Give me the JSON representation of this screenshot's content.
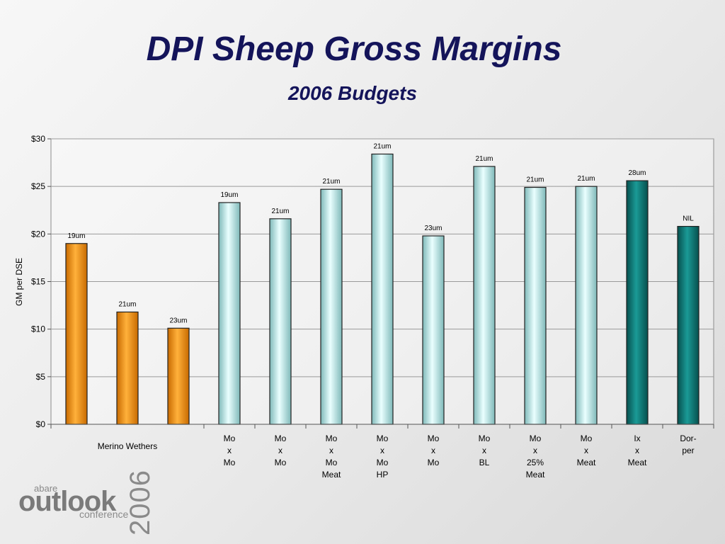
{
  "slide": {
    "title": "DPI Sheep Gross Margins",
    "subtitle": "2006 Budgets"
  },
  "chart_data": {
    "type": "bar",
    "ylabel": "GM per DSE",
    "ylim": [
      0,
      30
    ],
    "yticks": [
      "$0",
      "$5",
      "$10",
      "$15",
      "$20",
      "$25",
      "$30"
    ],
    "grid": true,
    "bars": [
      {
        "value": 19.0,
        "label": "19um",
        "color": "#f39200"
      },
      {
        "value": 11.8,
        "label": "21um",
        "color": "#f39200"
      },
      {
        "value": 10.1,
        "label": "23um",
        "color": "#f39200"
      },
      {
        "value": 23.3,
        "label": "19um",
        "color": "#c7eeee"
      },
      {
        "value": 21.6,
        "label": "21um",
        "color": "#c7eeee"
      },
      {
        "value": 24.7,
        "label": "21um",
        "color": "#c7eeee"
      },
      {
        "value": 28.4,
        "label": "21um",
        "color": "#c7eeee"
      },
      {
        "value": 19.8,
        "label": "23um",
        "color": "#c7eeee"
      },
      {
        "value": 27.1,
        "label": "21um",
        "color": "#c7eeee"
      },
      {
        "value": 24.9,
        "label": "21um",
        "color": "#c7eeee"
      },
      {
        "value": 25.0,
        "label": "21um",
        "color": "#c7eeee"
      },
      {
        "value": 25.6,
        "label": "28um",
        "color": "#0e7b78"
      },
      {
        "value": 20.8,
        "label": "NIL",
        "color": "#0e7b78"
      }
    ],
    "categories": [
      {
        "span": 3,
        "lines": [
          "Merino Wethers"
        ]
      },
      {
        "span": 1,
        "lines": [
          "Mo",
          "x",
          "Mo"
        ]
      },
      {
        "span": 1,
        "lines": [
          "Mo",
          "x",
          "Mo"
        ]
      },
      {
        "span": 1,
        "lines": [
          "Mo",
          "x",
          "Mo",
          "Meat"
        ]
      },
      {
        "span": 1,
        "lines": [
          "Mo",
          "x",
          "Mo",
          "HP"
        ]
      },
      {
        "span": 1,
        "lines": [
          "Mo",
          "x",
          "Mo"
        ]
      },
      {
        "span": 1,
        "lines": [
          "Mo",
          "x",
          "BL"
        ]
      },
      {
        "span": 1,
        "lines": [
          "Mo",
          "x",
          "25%",
          "Meat"
        ]
      },
      {
        "span": 1,
        "lines": [
          "Mo",
          "x",
          "Meat"
        ]
      },
      {
        "span": 1,
        "lines": [
          "Ix",
          "x",
          "Meat"
        ]
      },
      {
        "span": 1,
        "lines": [
          "Dor-",
          "per"
        ]
      }
    ]
  },
  "logo": {
    "abare": "abare",
    "outlook": "outlook",
    "conference": "conference",
    "year": "2006"
  }
}
